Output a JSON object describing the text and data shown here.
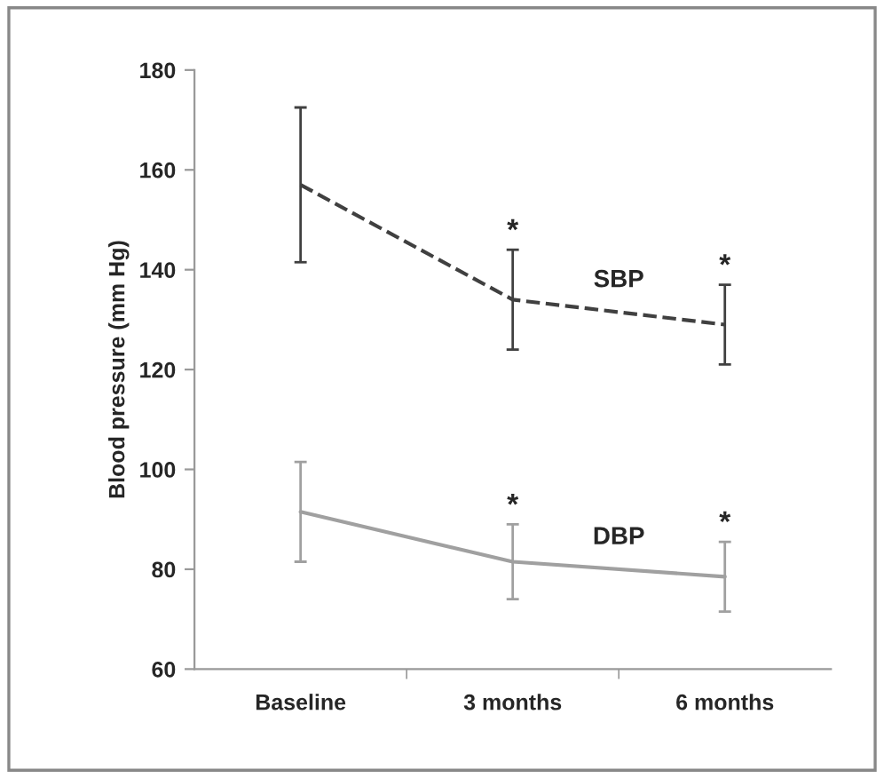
{
  "chart_data": {
    "type": "line",
    "ylabel": "Blood pressure (mm Hg)",
    "categories": [
      "Baseline",
      "3 months",
      "6 months"
    ],
    "series": [
      {
        "name": "SBP",
        "color": "#404040",
        "line_style": "dashed",
        "values": [
          157,
          134,
          129
        ],
        "errors": [
          15.5,
          10,
          8
        ]
      },
      {
        "name": "DBP",
        "color": "#a0a0a0",
        "line_style": "solid",
        "values": [
          91.5,
          81.5,
          78.5
        ],
        "errors": [
          10,
          7.5,
          7
        ]
      }
    ],
    "ylim": [
      60,
      180
    ],
    "yticks": [
      60,
      80,
      100,
      120,
      140,
      160,
      180
    ],
    "grid": false,
    "legend": false,
    "marker": "none",
    "annotations": [
      {
        "text": "*",
        "x": "3 months",
        "y": 144
      },
      {
        "text": "*",
        "x": "6 months",
        "y": 137
      },
      {
        "text": "*",
        "x": "3 months",
        "y": 89
      },
      {
        "text": "*",
        "x": "6 months",
        "y": 85.5
      }
    ]
  }
}
